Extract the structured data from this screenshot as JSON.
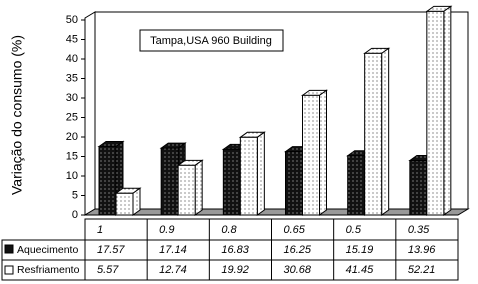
{
  "chart_data": {
    "type": "bar",
    "title": "Tampa,USA 960 Building",
    "y_label": "Variação do consumo (%)",
    "categories": [
      "1",
      "0.9",
      "0.8",
      "0.65",
      "0.5",
      "0.35"
    ],
    "series": [
      {
        "name": "Aquecimento",
        "color": "#111111",
        "values": [
          17.57,
          17.14,
          16.83,
          16.25,
          15.19,
          13.96
        ]
      },
      {
        "name": "Resfriamento",
        "color": "#ffffff",
        "values": [
          5.57,
          12.74,
          19.92,
          30.68,
          41.45,
          52.21
        ]
      }
    ],
    "ylim": [
      0,
      50
    ],
    "yticks": [
      0,
      5,
      10,
      15,
      20,
      25,
      30,
      35,
      40,
      45,
      50
    ]
  }
}
